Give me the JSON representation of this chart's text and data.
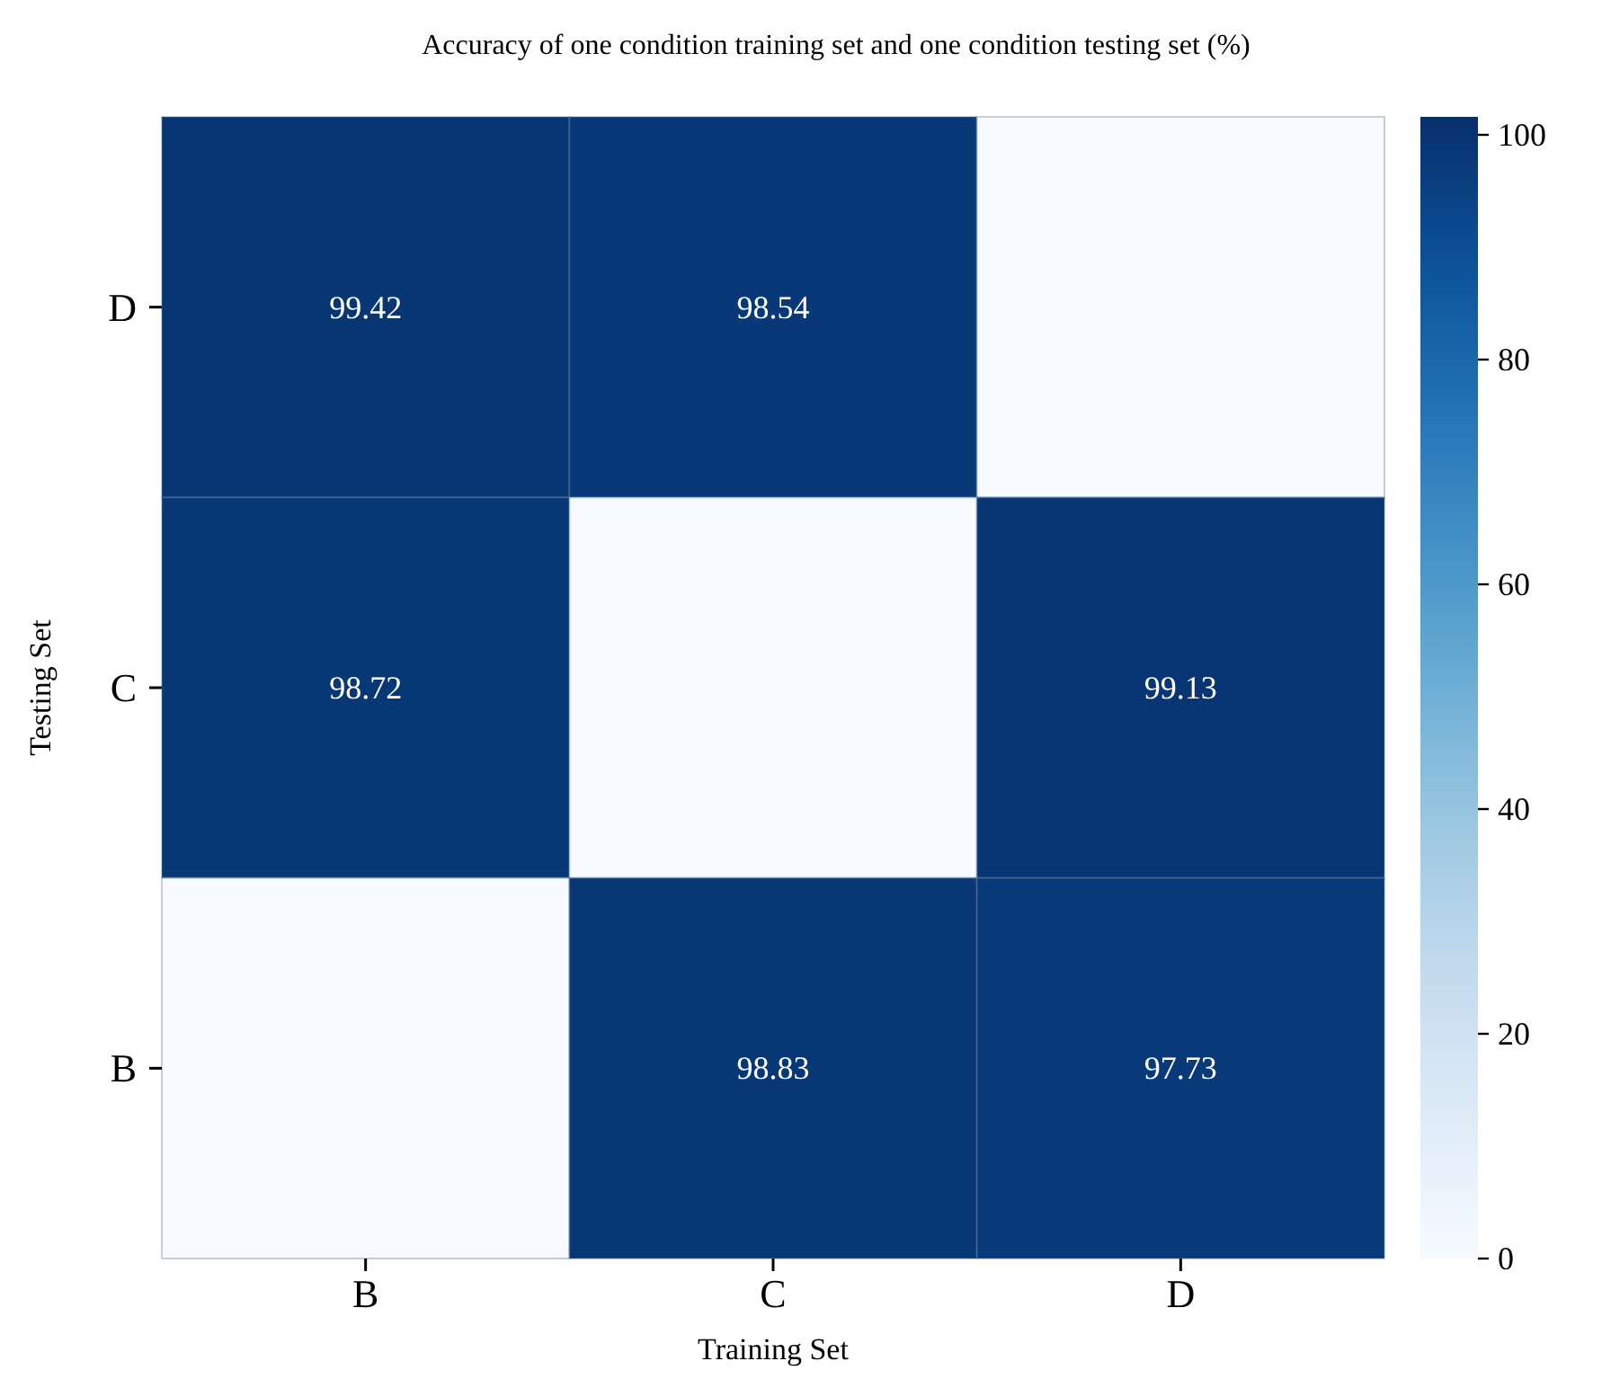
{
  "chart_data": {
    "type": "heatmap",
    "title": "Accuracy of one condition training set and one condition testing set (%)",
    "xlabel": "Training Set",
    "ylabel": "Testing Set",
    "categories": [
      "B",
      "C",
      "D"
    ],
    "y_categories": [
      "D",
      "C",
      "B"
    ],
    "cells": [
      [
        99.42,
        98.54,
        0
      ],
      [
        98.72,
        0,
        99.13
      ],
      [
        0,
        98.83,
        97.73
      ]
    ],
    "cell_labels": [
      [
        "99.42",
        "98.54",
        null
      ],
      [
        "98.72",
        null,
        "99.13"
      ],
      [
        null,
        "98.83",
        "97.73"
      ]
    ],
    "clim": [
      0,
      101.6
    ],
    "cticks": [
      0,
      20,
      40,
      60,
      80,
      100
    ]
  }
}
